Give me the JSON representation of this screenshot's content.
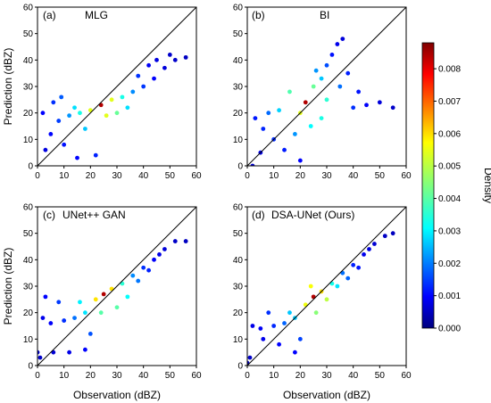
{
  "colorbar": {
    "label": "Density",
    "min": 0,
    "max": 0.0088,
    "ticks": [
      "0.000",
      "0.001",
      "0.002",
      "0.003",
      "0.004",
      "0.005",
      "0.006",
      "0.007",
      "0.008"
    ],
    "colormap": "jet"
  },
  "chart_data": [
    {
      "type": "scatter",
      "panel_label": "(a)",
      "title": "MLG",
      "xlabel": "",
      "ylabel": "Prediction (dBZ)",
      "xlim": [
        0,
        60
      ],
      "ylim": [
        0,
        60
      ],
      "xticks": [
        "0",
        "10",
        "20",
        "30",
        "40",
        "50",
        "60"
      ],
      "yticks": [
        "0",
        "10",
        "20",
        "30",
        "40",
        "50",
        "60"
      ],
      "reference_line": "y = x",
      "density_center": [
        24,
        23
      ],
      "points": [
        [
          24,
          23
        ],
        [
          20,
          21
        ],
        [
          28,
          25
        ],
        [
          32,
          26
        ],
        [
          36,
          28
        ],
        [
          40,
          30
        ],
        [
          44,
          33
        ],
        [
          48,
          37
        ],
        [
          52,
          40
        ],
        [
          56,
          41
        ],
        [
          16,
          20
        ],
        [
          12,
          19
        ],
        [
          8,
          17
        ],
        [
          5,
          12
        ],
        [
          3,
          6
        ],
        [
          10,
          8
        ],
        [
          15,
          3
        ],
        [
          22,
          4
        ],
        [
          6,
          24
        ],
        [
          9,
          26
        ],
        [
          2,
          20
        ],
        [
          45,
          40
        ],
        [
          50,
          42
        ],
        [
          42,
          38
        ],
        [
          30,
          20
        ],
        [
          34,
          22
        ],
        [
          18,
          14
        ],
        [
          14,
          22
        ],
        [
          26,
          19
        ],
        [
          38,
          34
        ]
      ]
    },
    {
      "type": "scatter",
      "panel_label": "(b)",
      "title": "BI",
      "xlabel": "",
      "ylabel": "",
      "xlim": [
        0,
        60
      ],
      "ylim": [
        0,
        60
      ],
      "xticks": [
        "0",
        "10",
        "20",
        "30",
        "40",
        "50",
        "60"
      ],
      "yticks": [
        "0",
        "10",
        "20",
        "30",
        "40",
        "50",
        "60"
      ],
      "reference_line": "y = x",
      "density_center": [
        22,
        24
      ],
      "points": [
        [
          22,
          24
        ],
        [
          20,
          20
        ],
        [
          25,
          30
        ],
        [
          28,
          33
        ],
        [
          30,
          38
        ],
        [
          32,
          42
        ],
        [
          34,
          46
        ],
        [
          36,
          48
        ],
        [
          24,
          15
        ],
        [
          18,
          12
        ],
        [
          10,
          10
        ],
        [
          5,
          5
        ],
        [
          2,
          0
        ],
        [
          8,
          20
        ],
        [
          12,
          21
        ],
        [
          3,
          18
        ],
        [
          40,
          22
        ],
        [
          45,
          23
        ],
        [
          50,
          24
        ],
        [
          55,
          22
        ],
        [
          30,
          25
        ],
        [
          16,
          28
        ],
        [
          26,
          36
        ],
        [
          35,
          30
        ],
        [
          38,
          35
        ],
        [
          14,
          6
        ],
        [
          20,
          2
        ],
        [
          28,
          18
        ],
        [
          6,
          14
        ],
        [
          42,
          28
        ]
      ]
    },
    {
      "type": "scatter",
      "panel_label": "(c)",
      "title": "UNet++ GAN",
      "xlabel": "Observation (dBZ)",
      "ylabel": "Prediction (dBZ)",
      "xlim": [
        0,
        60
      ],
      "ylim": [
        0,
        60
      ],
      "xticks": [
        "0",
        "10",
        "20",
        "30",
        "40",
        "50",
        "60"
      ],
      "yticks": [
        "0",
        "10",
        "20",
        "30",
        "40",
        "50",
        "60"
      ],
      "reference_line": "y = x",
      "density_center": [
        25,
        27
      ],
      "points": [
        [
          25,
          27
        ],
        [
          22,
          25
        ],
        [
          28,
          29
        ],
        [
          32,
          31
        ],
        [
          36,
          34
        ],
        [
          40,
          37
        ],
        [
          44,
          40
        ],
        [
          48,
          44
        ],
        [
          52,
          47
        ],
        [
          56,
          47
        ],
        [
          18,
          20
        ],
        [
          14,
          18
        ],
        [
          10,
          17
        ],
        [
          5,
          16
        ],
        [
          2,
          18
        ],
        [
          1,
          3
        ],
        [
          0,
          5
        ],
        [
          6,
          5
        ],
        [
          12,
          5
        ],
        [
          18,
          6
        ],
        [
          8,
          24
        ],
        [
          3,
          26
        ],
        [
          30,
          22
        ],
        [
          34,
          26
        ],
        [
          20,
          12
        ],
        [
          24,
          20
        ],
        [
          38,
          32
        ],
        [
          46,
          42
        ],
        [
          16,
          24
        ],
        [
          42,
          36
        ]
      ]
    },
    {
      "type": "scatter",
      "panel_label": "(d)",
      "title": "DSA-UNet (Ours)",
      "xlabel": "Observation (dBZ)",
      "ylabel": "",
      "xlim": [
        0,
        60
      ],
      "ylim": [
        0,
        60
      ],
      "xticks": [
        "0",
        "10",
        "20",
        "30",
        "40",
        "50",
        "60"
      ],
      "yticks": [
        "0",
        "10",
        "20",
        "30",
        "40",
        "50",
        "60"
      ],
      "reference_line": "y = x",
      "density_center": [
        25,
        26
      ],
      "points": [
        [
          25,
          26
        ],
        [
          22,
          23
        ],
        [
          28,
          28
        ],
        [
          32,
          31
        ],
        [
          36,
          35
        ],
        [
          40,
          38
        ],
        [
          44,
          42
        ],
        [
          48,
          46
        ],
        [
          52,
          49
        ],
        [
          55,
          50
        ],
        [
          18,
          18
        ],
        [
          14,
          16
        ],
        [
          10,
          15
        ],
        [
          5,
          14
        ],
        [
          2,
          15
        ],
        [
          1,
          3
        ],
        [
          0,
          1
        ],
        [
          6,
          10
        ],
        [
          12,
          8
        ],
        [
          18,
          5
        ],
        [
          20,
          10
        ],
        [
          30,
          25
        ],
        [
          34,
          30
        ],
        [
          26,
          20
        ],
        [
          38,
          33
        ],
        [
          16,
          20
        ],
        [
          8,
          20
        ],
        [
          42,
          37
        ],
        [
          46,
          44
        ],
        [
          24,
          30
        ]
      ]
    }
  ]
}
